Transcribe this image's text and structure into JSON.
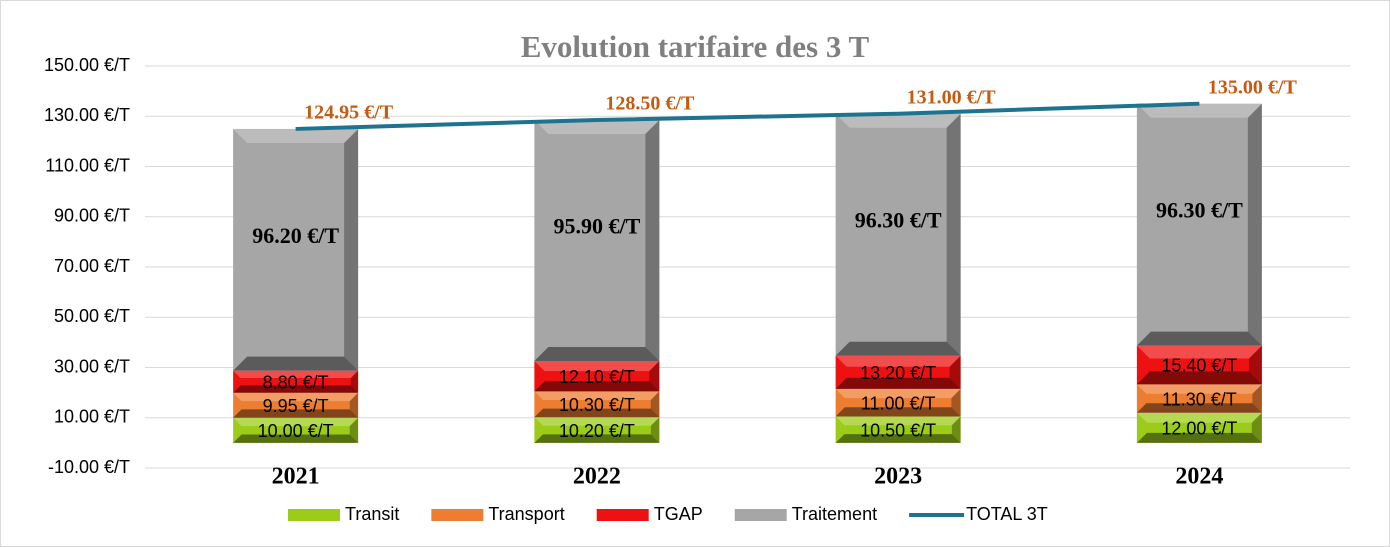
{
  "chart_data": {
    "type": "bar",
    "stacked": true,
    "title": "Evolution tarifaire des 3 T",
    "categories": [
      "2021",
      "2022",
      "2023",
      "2024"
    ],
    "ylim": [
      -10,
      150
    ],
    "yticks": [
      {
        "value": -10,
        "label": "-10.00 €/T"
      },
      {
        "value": 10,
        "label": "10.00 €/T"
      },
      {
        "value": 30,
        "label": "30.00 €/T"
      },
      {
        "value": 50,
        "label": "50.00 €/T"
      },
      {
        "value": 70,
        "label": "70.00 €/T"
      },
      {
        "value": 90,
        "label": "90.00 €/T"
      },
      {
        "value": 110,
        "label": "110.00 €/T"
      },
      {
        "value": 130,
        "label": "130.00 €/T"
      },
      {
        "value": 150,
        "label": "150.00 €/T"
      }
    ],
    "grid": true,
    "legend": "bottom",
    "series": [
      {
        "name": "Transit",
        "color": "#9ccc1a",
        "values": [
          10,
          10.2,
          10.5,
          12
        ],
        "value_labels": [
          "10.00 €/T",
          "10.20 €/T",
          "10.50 €/T",
          "12.00 €/T"
        ]
      },
      {
        "name": "Transport",
        "color": "#ed7d31",
        "values": [
          9.95,
          10.3,
          11,
          11.3
        ],
        "value_labels": [
          "9.95 €/T",
          "10.30 €/T",
          "11.00 €/T",
          "11.30 €/T"
        ]
      },
      {
        "name": "TGAP",
        "color": "#ee1111",
        "values": [
          8.8,
          12.1,
          13.2,
          15.4
        ],
        "value_labels": [
          "8.80 €/T",
          "12.10 €/T",
          "13.20 €/T",
          "15.40 €/T"
        ]
      },
      {
        "name": "Traitement",
        "color": "#a6a6a6",
        "values": [
          96.2,
          95.9,
          96.3,
          96.3
        ],
        "value_labels": [
          "96.20 €/T",
          "95.90 €/T",
          "96.30 €/T",
          "96.30 €/T"
        ]
      },
      {
        "name": "TOTAL 3T",
        "type": "line",
        "color": "#1d7390",
        "values": [
          124.95,
          128.5,
          131,
          135
        ],
        "value_labels": [
          "124.95 €/T",
          "128.50 €/T",
          "131.00 €/T",
          "135.00 €/T"
        ]
      }
    ]
  }
}
